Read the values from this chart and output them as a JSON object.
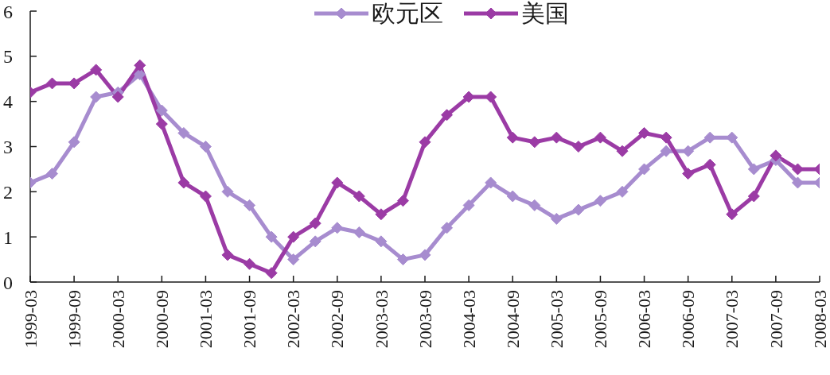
{
  "chart_data": {
    "type": "line",
    "categories": [
      "1999-03",
      null,
      "1999-09",
      null,
      "2000-03",
      null,
      "2000-09",
      null,
      "2001-03",
      null,
      "2001-09",
      null,
      "2002-03",
      null,
      "2002-09",
      null,
      "2003-03",
      null,
      "2003-09",
      null,
      "2004-03",
      null,
      "2004-09",
      null,
      "2005-03",
      null,
      "2005-09",
      null,
      "2006-03",
      null,
      "2006-09",
      null,
      "2007-03",
      null,
      "2007-09",
      null,
      "2008-03"
    ],
    "series": [
      {
        "name": "欧元区",
        "color": "#a78ccf",
        "values": [
          2.2,
          2.4,
          3.1,
          4.1,
          4.2,
          4.6,
          3.8,
          3.3,
          3.0,
          2.0,
          1.7,
          1.0,
          0.5,
          0.9,
          1.2,
          1.1,
          0.9,
          0.5,
          0.6,
          1.2,
          1.7,
          2.2,
          1.9,
          1.7,
          1.4,
          1.6,
          1.8,
          2.0,
          2.5,
          2.9,
          2.9,
          3.2,
          3.2,
          2.5,
          2.7,
          2.2,
          2.2
        ]
      },
      {
        "name": "美国",
        "color": "#9b3ba5",
        "values": [
          4.2,
          4.4,
          4.4,
          4.7,
          4.1,
          4.8,
          3.5,
          2.2,
          1.9,
          0.6,
          0.4,
          0.2,
          1.0,
          1.3,
          2.2,
          1.9,
          1.5,
          1.8,
          3.1,
          3.7,
          4.1,
          4.1,
          3.2,
          3.1,
          3.2,
          3.0,
          3.2,
          2.9,
          3.3,
          3.2,
          2.4,
          2.6,
          1.5,
          1.9,
          2.8,
          2.5,
          2.5
        ]
      }
    ],
    "ylim": [
      0,
      6
    ],
    "yticks": [
      0,
      1,
      2,
      3,
      4,
      5,
      6
    ],
    "legend": "top",
    "marker": "diamond",
    "line_style": "solid"
  }
}
